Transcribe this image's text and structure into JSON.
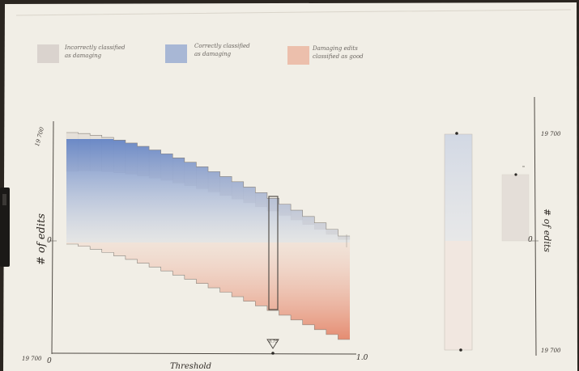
{
  "legend": {
    "incorrect_damaging": {
      "line1": "Incorrectly classified",
      "line2": "as damaging",
      "color": "#d2cac6"
    },
    "correct_damaging": {
      "line1": "Correctly classified",
      "line2": "as damaging",
      "color": "#8fa4cf"
    },
    "damaging_good": {
      "line1": "Damaging edits",
      "line2": "classified as good",
      "color": "#ebb39e"
    }
  },
  "main_chart": {
    "y_top": "19 700",
    "y_bottom": "19 700",
    "y_zero": "0",
    "y_label": "# of edits",
    "x_start": "0",
    "x_end": "1.0",
    "x_label": "Threshold",
    "marker_label": "0.75",
    "marker_icon": "triangle-marker-icon"
  },
  "side_chart": {
    "y_top": "19 700",
    "y_bottom": "19 700",
    "y_zero": "0",
    "y_label": "# of edits"
  },
  "colors": {
    "paper": "#f1eee6",
    "pencil": "#5a554f",
    "blue": "#7d98cc",
    "red": "#e8957c"
  }
}
